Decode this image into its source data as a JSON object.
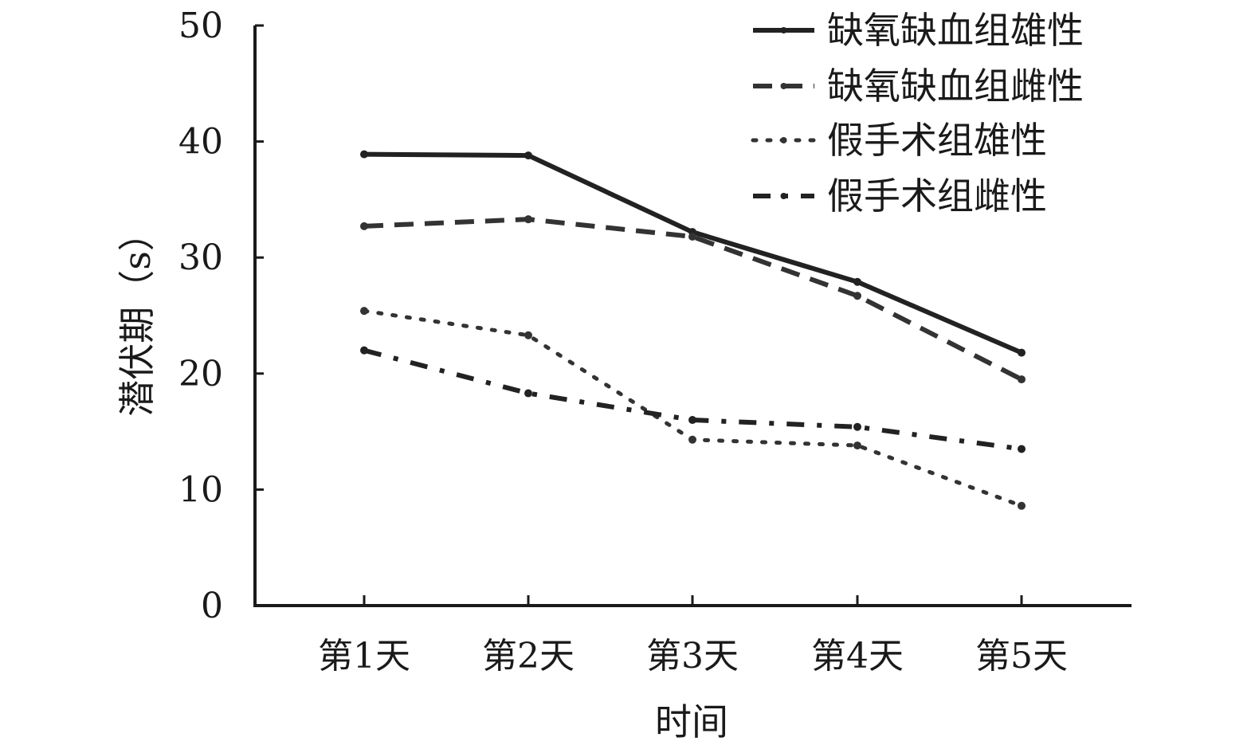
{
  "chart_data": {
    "type": "line",
    "title": "",
    "xlabel": "时间",
    "ylabel": "潜伏期（s）",
    "ylim": [
      0,
      50
    ],
    "yticks": [
      0,
      10,
      20,
      30,
      40,
      50
    ],
    "grid": false,
    "legend_position": "top-right",
    "categories": [
      "第1天",
      "第2天",
      "第3天",
      "第4天",
      "第5天"
    ],
    "series": [
      {
        "name": "缺氧缺血组雄性",
        "style": "solid",
        "color": "#222222",
        "values": [
          38.9,
          38.8,
          32.2,
          27.9,
          21.8
        ]
      },
      {
        "name": "缺氧缺血组雌性",
        "style": "dashed",
        "color": "#333333",
        "values": [
          32.7,
          33.3,
          31.8,
          26.7,
          19.5
        ]
      },
      {
        "name": "假手术组雄性",
        "style": "dotted",
        "color": "#333333",
        "values": [
          25.4,
          23.3,
          14.3,
          13.8,
          8.6
        ]
      },
      {
        "name": "假手术组雌性",
        "style": "dashdot",
        "color": "#222222",
        "values": [
          22.0,
          18.3,
          16.0,
          15.4,
          13.5
        ]
      }
    ]
  }
}
